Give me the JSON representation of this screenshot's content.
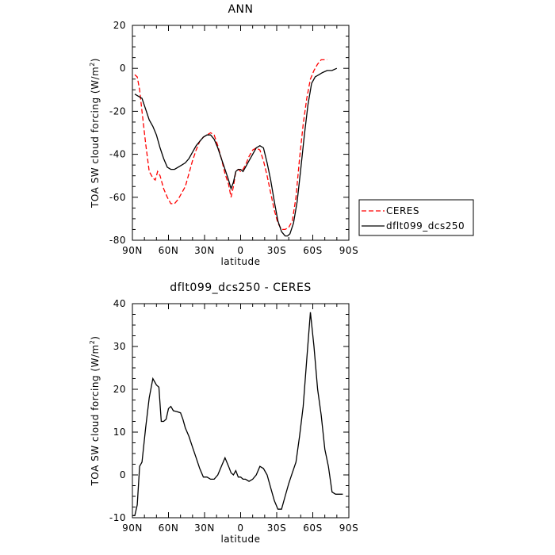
{
  "chart_data": [
    {
      "type": "line",
      "title": "ANN",
      "xlabel": "latitude",
      "ylabel_main": "TOA SW cloud forcing (W/m",
      "ylabel_sup": "2",
      "ylabel_tail": ")",
      "xlim": [
        90,
        -90
      ],
      "ylim": [
        -80,
        20
      ],
      "xticks": [
        90,
        60,
        30,
        0,
        -30,
        -60,
        -90
      ],
      "xticklabels": [
        "90N",
        "60N",
        "30N",
        "0",
        "30S",
        "60S",
        "90S"
      ],
      "yticks": [
        -80,
        -60,
        -40,
        -20,
        0,
        20
      ],
      "yticklabels": [
        "-80",
        "-60",
        "-40",
        "-20",
        "0",
        "20"
      ],
      "legend_position": "right",
      "series": [
        {
          "name": "CERES",
          "color": "#ff0000",
          "dash": "dashed",
          "points": [
            [
              88,
              -3
            ],
            [
              86,
              -4
            ],
            [
              84,
              -10
            ],
            [
              82,
              -20
            ],
            [
              79,
              -35
            ],
            [
              76,
              -48
            ],
            [
              73,
              -51
            ],
            [
              71,
              -52
            ],
            [
              69,
              -48
            ],
            [
              67,
              -50
            ],
            [
              64,
              -56
            ],
            [
              61,
              -60
            ],
            [
              58,
              -63
            ],
            [
              55,
              -63
            ],
            [
              52,
              -61
            ],
            [
              49,
              -58
            ],
            [
              46,
              -55
            ],
            [
              43,
              -49
            ],
            [
              40,
              -43
            ],
            [
              37,
              -38
            ],
            [
              34,
              -34
            ],
            [
              31,
              -32
            ],
            [
              28,
              -31
            ],
            [
              25,
              -30
            ],
            [
              22,
              -31
            ],
            [
              19,
              -36
            ],
            [
              16,
              -42
            ],
            [
              13,
              -49
            ],
            [
              10,
              -54
            ],
            [
              8,
              -60
            ],
            [
              6,
              -55
            ],
            [
              4,
              -48
            ],
            [
              2,
              -47
            ],
            [
              0,
              -48
            ],
            [
              -2,
              -47
            ],
            [
              -4,
              -45
            ],
            [
              -7,
              -41
            ],
            [
              -10,
              -38
            ],
            [
              -13,
              -37
            ],
            [
              -16,
              -38
            ],
            [
              -19,
              -43
            ],
            [
              -22,
              -50
            ],
            [
              -25,
              -58
            ],
            [
              -28,
              -66
            ],
            [
              -31,
              -72
            ],
            [
              -34,
              -75
            ],
            [
              -37,
              -75
            ],
            [
              -40,
              -74
            ],
            [
              -43,
              -71
            ],
            [
              -46,
              -60
            ],
            [
              -49,
              -42
            ],
            [
              -52,
              -26
            ],
            [
              -55,
              -14
            ],
            [
              -58,
              -5
            ],
            [
              -61,
              -1
            ],
            [
              -64,
              2
            ],
            [
              -67,
              4
            ],
            [
              -70,
              4
            ],
            [
              -72,
              4
            ]
          ]
        },
        {
          "name": "dflt099_dcs250",
          "color": "#000000",
          "dash": "solid",
          "points": [
            [
              88,
              -12
            ],
            [
              85,
              -13
            ],
            [
              82,
              -14
            ],
            [
              79,
              -19
            ],
            [
              76,
              -24
            ],
            [
              73,
              -27
            ],
            [
              70,
              -31
            ],
            [
              67,
              -37
            ],
            [
              64,
              -42
            ],
            [
              61,
              -46
            ],
            [
              58,
              -47
            ],
            [
              55,
              -47
            ],
            [
              52,
              -46
            ],
            [
              49,
              -45
            ],
            [
              46,
              -44
            ],
            [
              43,
              -42
            ],
            [
              40,
              -39
            ],
            [
              37,
              -36
            ],
            [
              34,
              -34
            ],
            [
              31,
              -32
            ],
            [
              28,
              -31
            ],
            [
              25,
              -31
            ],
            [
              22,
              -33
            ],
            [
              19,
              -37
            ],
            [
              16,
              -42
            ],
            [
              13,
              -47
            ],
            [
              10,
              -52
            ],
            [
              8,
              -56
            ],
            [
              6,
              -53
            ],
            [
              4,
              -48
            ],
            [
              2,
              -47
            ],
            [
              0,
              -47
            ],
            [
              -2,
              -48
            ],
            [
              -4,
              -46
            ],
            [
              -7,
              -43
            ],
            [
              -10,
              -40
            ],
            [
              -13,
              -37
            ],
            [
              -16,
              -36
            ],
            [
              -19,
              -37
            ],
            [
              -22,
              -44
            ],
            [
              -25,
              -52
            ],
            [
              -28,
              -62
            ],
            [
              -31,
              -71
            ],
            [
              -34,
              -76
            ],
            [
              -37,
              -78
            ],
            [
              -39,
              -78
            ],
            [
              -41,
              -77
            ],
            [
              -44,
              -72
            ],
            [
              -47,
              -62
            ],
            [
              -50,
              -47
            ],
            [
              -53,
              -31
            ],
            [
              -56,
              -17
            ],
            [
              -59,
              -7
            ],
            [
              -62,
              -4
            ],
            [
              -65,
              -3
            ],
            [
              -68,
              -2
            ],
            [
              -72,
              -1
            ],
            [
              -76,
              -1
            ],
            [
              -80,
              0
            ]
          ]
        }
      ]
    },
    {
      "type": "line",
      "title": "dflt099_dcs250 - CERES",
      "xlabel": "latitude",
      "ylabel_main": "TOA SW cloud forcing (W/m",
      "ylabel_sup": "2",
      "ylabel_tail": ")",
      "xlim": [
        90,
        -90
      ],
      "ylim": [
        -10,
        40
      ],
      "xticks": [
        90,
        60,
        30,
        0,
        -30,
        -60,
        -90
      ],
      "xticklabels": [
        "90N",
        "60N",
        "30N",
        "0",
        "30S",
        "60S",
        "90S"
      ],
      "yticks": [
        -10,
        0,
        10,
        20,
        30,
        40
      ],
      "yticklabels": [
        "-10",
        "0",
        "10",
        "20",
        "30",
        "40"
      ],
      "series": [
        {
          "color": "#000000",
          "dash": "solid",
          "points": [
            [
              90,
              -9.5
            ],
            [
              88,
              -9.5
            ],
            [
              86,
              -7
            ],
            [
              84,
              2
            ],
            [
              82,
              3
            ],
            [
              79,
              11
            ],
            [
              76,
              18
            ],
            [
              73,
              22.5
            ],
            [
              70,
              21
            ],
            [
              68,
              20.5
            ],
            [
              66,
              12.5
            ],
            [
              64,
              12.5
            ],
            [
              62,
              13
            ],
            [
              60,
              15.5
            ],
            [
              58,
              16
            ],
            [
              56,
              15
            ],
            [
              53,
              14.8
            ],
            [
              50,
              14.5
            ],
            [
              48,
              13
            ],
            [
              46,
              11
            ],
            [
              43,
              9
            ],
            [
              40,
              6.5
            ],
            [
              37,
              4
            ],
            [
              34,
              1.5
            ],
            [
              31,
              -0.5
            ],
            [
              28,
              -0.5
            ],
            [
              25,
              -1
            ],
            [
              22,
              -1
            ],
            [
              19,
              0
            ],
            [
              16,
              2
            ],
            [
              13,
              4
            ],
            [
              10,
              2
            ],
            [
              8,
              0.5
            ],
            [
              6,
              0
            ],
            [
              4,
              1
            ],
            [
              2,
              -0.5
            ],
            [
              0,
              -0.5
            ],
            [
              -2,
              -1
            ],
            [
              -4,
              -1
            ],
            [
              -7,
              -1.5
            ],
            [
              -10,
              -1
            ],
            [
              -13,
              0
            ],
            [
              -16,
              2
            ],
            [
              -19,
              1.5
            ],
            [
              -22,
              0
            ],
            [
              -25,
              -3
            ],
            [
              -28,
              -6
            ],
            [
              -31,
              -8
            ],
            [
              -34,
              -8
            ],
            [
              -37,
              -5
            ],
            [
              -40,
              -2
            ],
            [
              -43,
              0.5
            ],
            [
              -46,
              3
            ],
            [
              -49,
              9
            ],
            [
              -52,
              16
            ],
            [
              -55,
              27
            ],
            [
              -58,
              38
            ],
            [
              -61,
              30
            ],
            [
              -64,
              20
            ],
            [
              -67,
              14
            ],
            [
              -70,
              6
            ],
            [
              -73,
              2
            ],
            [
              -76,
              -4
            ],
            [
              -79,
              -4.5
            ],
            [
              -82,
              -4.5
            ],
            [
              -85,
              -4.5
            ]
          ]
        }
      ]
    }
  ]
}
